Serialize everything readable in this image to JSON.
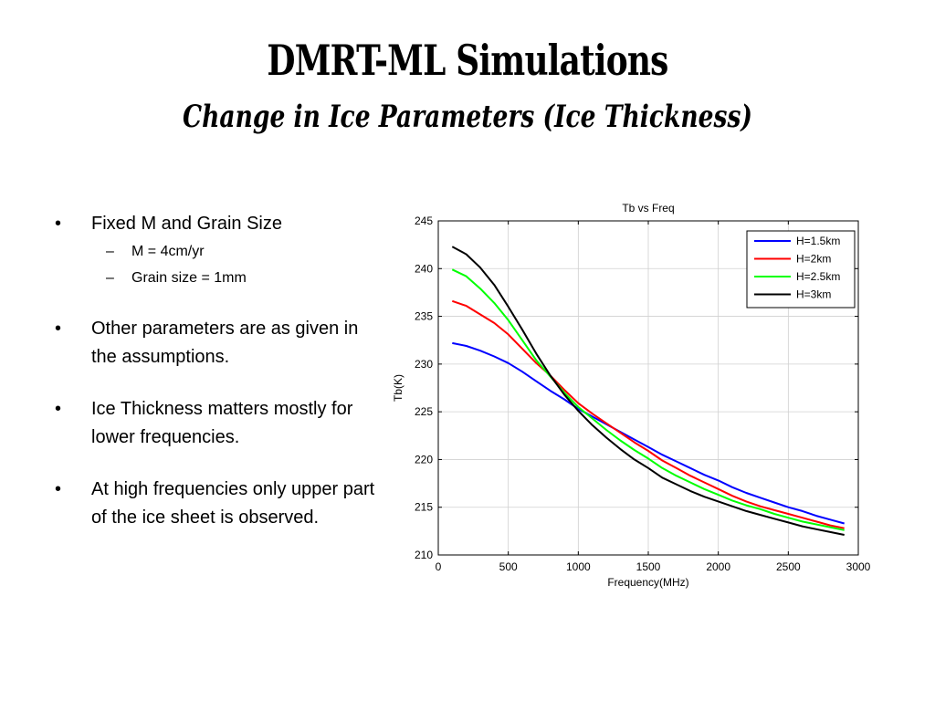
{
  "slide": {
    "title": "DMRT-ML Simulations",
    "subtitle": "Change in Ice Parameters (Ice Thickness)"
  },
  "bullets": [
    {
      "text": "Fixed M and Grain Size",
      "sub": [
        "M = 4cm/yr",
        "Grain size = 1mm"
      ]
    },
    {
      "text": "Other parameters are as given in the assumptions."
    },
    {
      "text": "Ice Thickness matters mostly for lower frequencies."
    },
    {
      "text": "At high frequencies only upper part of the ice sheet is observed."
    }
  ],
  "bullet_glyph": "•",
  "dash_glyph": "–",
  "chart_data": {
    "type": "line",
    "title": "Tb vs Freq",
    "xlabel": "Frequency(MHz)",
    "ylabel": "Tb(K)",
    "xlim": [
      0,
      3000
    ],
    "ylim": [
      210,
      245
    ],
    "xticks": [
      0,
      500,
      1000,
      1500,
      2000,
      2500,
      3000
    ],
    "yticks": [
      210,
      215,
      220,
      225,
      230,
      235,
      240,
      245
    ],
    "grid": true,
    "legend_position": "top-right",
    "x": [
      100,
      200,
      300,
      400,
      500,
      600,
      700,
      800,
      900,
      1000,
      1100,
      1200,
      1300,
      1400,
      1500,
      1600,
      1700,
      1800,
      1900,
      2000,
      2100,
      2200,
      2300,
      2400,
      2500,
      2600,
      2700,
      2800,
      2900
    ],
    "series": [
      {
        "name": "H=1.5km",
        "color": "#0000ff",
        "values": [
          232.2,
          231.9,
          231.4,
          230.8,
          230.1,
          229.2,
          228.2,
          227.2,
          226.3,
          225.3,
          224.5,
          223.7,
          222.9,
          222.1,
          221.3,
          220.5,
          219.8,
          219.1,
          218.4,
          217.8,
          217.1,
          216.5,
          216.0,
          215.5,
          215.0,
          214.6,
          214.1,
          213.7,
          213.3
        ]
      },
      {
        "name": "H=2km",
        "color": "#ff0000",
        "values": [
          236.6,
          236.1,
          235.2,
          234.3,
          233.1,
          231.6,
          230.1,
          228.8,
          227.3,
          225.9,
          224.8,
          223.8,
          222.8,
          221.8,
          220.9,
          219.9,
          219.1,
          218.3,
          217.6,
          216.9,
          216.2,
          215.6,
          215.1,
          214.7,
          214.3,
          213.9,
          213.5,
          213.1,
          212.8
        ]
      },
      {
        "name": "H=2.5km",
        "color": "#00ff00",
        "values": [
          239.9,
          239.2,
          237.9,
          236.4,
          234.6,
          232.5,
          230.4,
          228.7,
          227.0,
          225.5,
          224.3,
          223.1,
          222.0,
          221.0,
          220.1,
          219.1,
          218.3,
          217.6,
          216.9,
          216.3,
          215.7,
          215.2,
          214.8,
          214.3,
          213.9,
          213.5,
          213.2,
          212.9,
          212.6
        ]
      },
      {
        "name": "H=3km",
        "color": "#000000",
        "values": [
          242.3,
          241.5,
          240.1,
          238.3,
          236.0,
          233.6,
          231.1,
          228.8,
          226.8,
          225.1,
          223.6,
          222.3,
          221.1,
          220.0,
          219.1,
          218.1,
          217.4,
          216.7,
          216.1,
          215.6,
          215.1,
          214.6,
          214.2,
          213.8,
          213.4,
          213.0,
          212.7,
          212.4,
          212.1
        ]
      }
    ]
  }
}
